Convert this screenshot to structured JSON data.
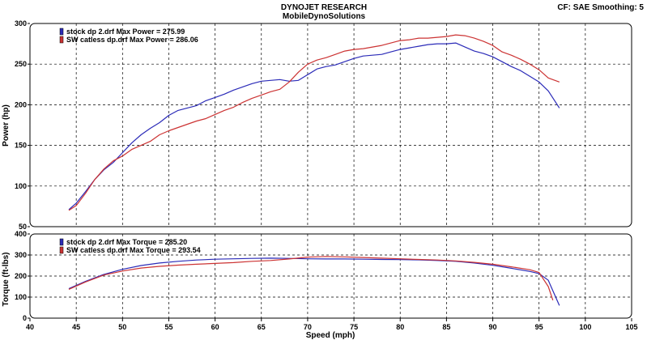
{
  "header": {
    "title": "DYNOJET RESEARCH",
    "subtitle": "MobileDynoSolutions",
    "info": "CF: SAE  Smoothing: 5"
  },
  "colors": {
    "stock": "#2b2bb8",
    "catless": "#cc3333"
  },
  "chart_data": [
    {
      "type": "line",
      "title": "",
      "ylabel": "Power (hp)",
      "xlabel": "",
      "xlim": [
        40,
        105
      ],
      "ylim": [
        50,
        300
      ],
      "xticks": [
        40,
        45,
        50,
        55,
        60,
        65,
        70,
        75,
        80,
        85,
        90,
        95,
        100,
        105
      ],
      "yticks": [
        50,
        100,
        150,
        200,
        250,
        300
      ],
      "grid": true,
      "legend_position": "top-left",
      "series": [
        {
          "name": "stock dp 2.drf Max Power = 275.99",
          "x": [
            44.2,
            45,
            46,
            47,
            48,
            49,
            50,
            51,
            52,
            53,
            54,
            55,
            56,
            57,
            58,
            59,
            60,
            61,
            62,
            63,
            64,
            65,
            66,
            67,
            68,
            69,
            70,
            71,
            72,
            73,
            74,
            75,
            76,
            77,
            78,
            79,
            80,
            81,
            82,
            83,
            84,
            85,
            86,
            87,
            88,
            89,
            90,
            91,
            92,
            93,
            94,
            95,
            96,
            97.2
          ],
          "y": [
            71,
            79,
            93,
            108,
            120,
            129,
            141,
            153,
            163,
            171,
            178,
            187,
            193,
            196,
            199,
            205,
            209,
            213,
            218,
            222,
            226,
            229,
            230,
            231,
            229,
            230,
            237,
            244,
            247,
            249,
            253,
            257,
            260,
            261,
            262,
            265,
            268,
            270,
            272,
            274,
            275,
            275,
            276,
            271,
            266,
            263,
            259,
            253,
            247,
            242,
            235,
            228,
            217,
            196
          ]
        },
        {
          "name": "SW catless dp.drf Max Power = 286.06",
          "x": [
            44.2,
            45,
            46,
            47,
            48,
            49,
            50,
            51,
            52,
            53,
            54,
            55,
            56,
            57,
            58,
            59,
            60,
            61,
            62,
            63,
            64,
            65,
            66,
            67,
            68,
            69,
            70,
            71,
            72,
            73,
            74,
            75,
            76,
            77,
            78,
            79,
            80,
            81,
            82,
            83,
            84,
            85,
            86,
            87,
            88,
            89,
            90,
            91,
            92,
            93,
            94,
            95,
            96,
            97.2
          ],
          "y": [
            70,
            76,
            91,
            108,
            121,
            131,
            137,
            145,
            150,
            155,
            163,
            168,
            172,
            176,
            180,
            183,
            188,
            193,
            197,
            203,
            208,
            212,
            216,
            219,
            228,
            240,
            250,
            255,
            258,
            262,
            266,
            268,
            269,
            271,
            273,
            276,
            279,
            280,
            282,
            282,
            283,
            284,
            286,
            285,
            282,
            278,
            273,
            265,
            261,
            256,
            250,
            243,
            233,
            228
          ]
        }
      ]
    },
    {
      "type": "line",
      "title": "",
      "ylabel": "Torque (ft-lbs)",
      "xlabel": "Speed (mph)",
      "xlim": [
        40,
        105
      ],
      "ylim": [
        0,
        400
      ],
      "xticks": [
        40,
        45,
        50,
        55,
        60,
        65,
        70,
        75,
        80,
        85,
        90,
        95,
        100,
        105
      ],
      "yticks": [
        0,
        100,
        200,
        300,
        400
      ],
      "grid": true,
      "legend_position": "top-left",
      "series": [
        {
          "name": "stock dp 2.drf Max Torque = 285.20",
          "x": [
            44.2,
            46,
            48,
            50,
            52,
            54,
            56,
            58,
            60,
            62,
            64,
            66,
            68,
            70,
            72,
            74,
            76,
            78,
            80,
            82,
            84,
            86,
            88,
            90,
            92,
            94,
            95,
            96,
            96.5,
            97.2
          ],
          "y": [
            140,
            175,
            208,
            232,
            250,
            262,
            270,
            276,
            280,
            282,
            284,
            285,
            284,
            282,
            281,
            281,
            280,
            279,
            278,
            277,
            274,
            270,
            262,
            251,
            237,
            222,
            212,
            180,
            130,
            60
          ]
        },
        {
          "name": "SW catless dp.drf Max Torque = 293.54",
          "x": [
            44.2,
            46,
            48,
            50,
            52,
            54,
            56,
            58,
            60,
            62,
            64,
            66,
            68,
            70,
            72,
            74,
            76,
            78,
            80,
            82,
            84,
            86,
            88,
            90,
            92,
            94,
            95,
            96,
            96.5
          ],
          "y": [
            137,
            172,
            205,
            224,
            238,
            246,
            252,
            256,
            260,
            264,
            270,
            274,
            281,
            290,
            293,
            291,
            288,
            285,
            282,
            279,
            276,
            272,
            265,
            256,
            244,
            230,
            217,
            150,
            85
          ]
        }
      ]
    }
  ]
}
